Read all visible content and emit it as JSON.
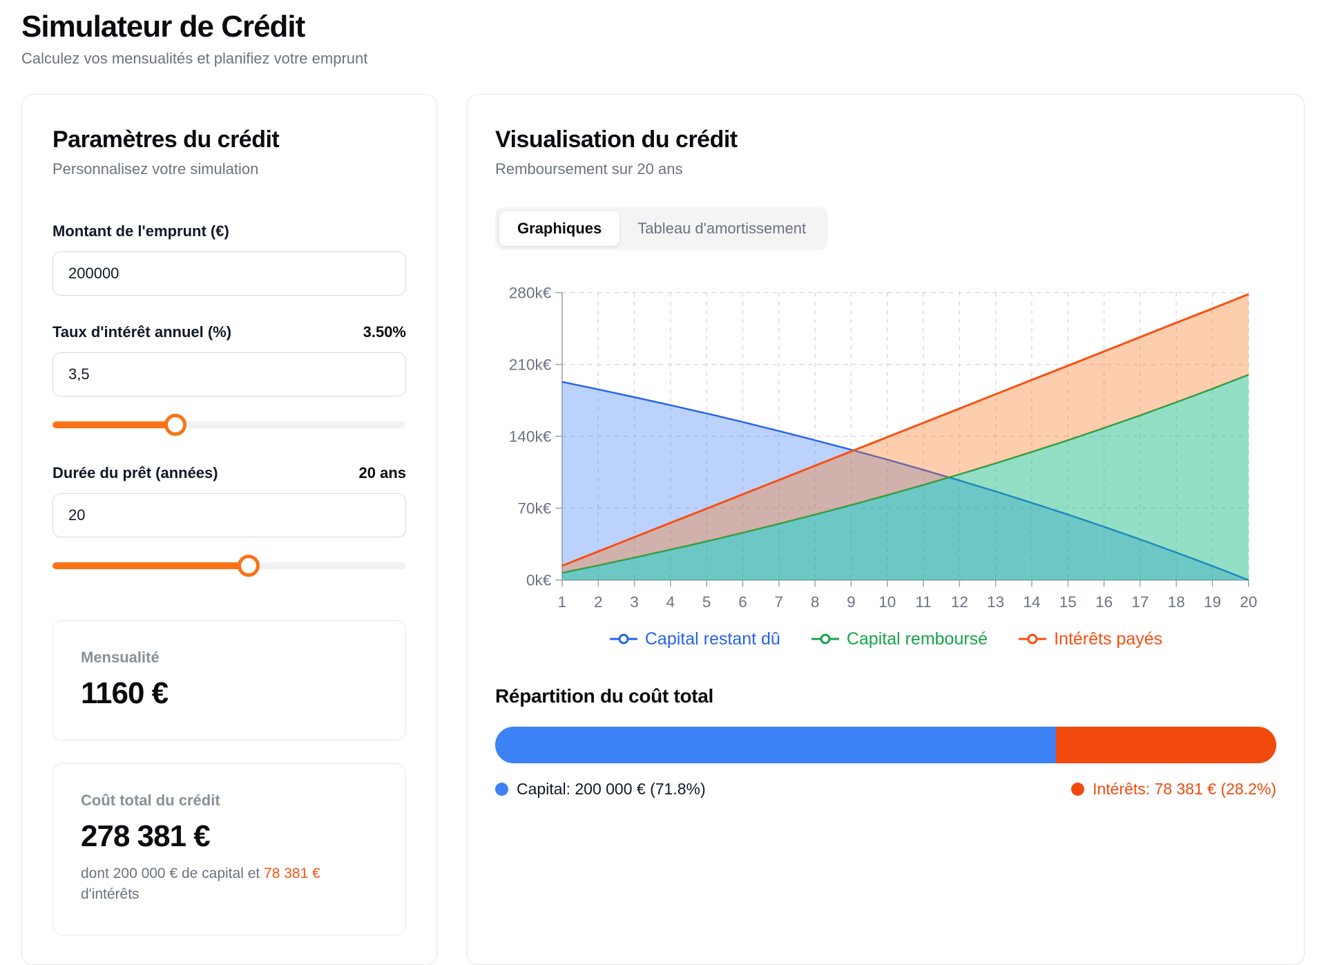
{
  "page": {
    "title": "Simulateur de Crédit",
    "subtitle": "Calculez vos mensualités et planifiez votre emprunt"
  },
  "params_card": {
    "title": "Paramètres du crédit",
    "subtitle": "Personnalisez votre simulation",
    "amount": {
      "label": "Montant de l'emprunt (€)",
      "value": "200000"
    },
    "rate": {
      "label": "Taux d'intérêt annuel (%)",
      "display": "3.50%",
      "value": "3,5",
      "slider_percent": 34.7
    },
    "duration": {
      "label": "Durée du prêt (années)",
      "display": "20 ans",
      "value": "20",
      "slider_percent": 55.4
    },
    "monthly": {
      "label": "Mensualité",
      "value": "1160 €"
    },
    "total": {
      "label": "Coût total du crédit",
      "value": "278 381 €",
      "note_prefix": "dont 200 000 € de capital et ",
      "note_highlight": "78 381 €",
      "note_suffix": "d'intérêts"
    },
    "accent_color": "#f97316"
  },
  "viz_card": {
    "title": "Visualisation du crédit",
    "subtitle": "Remboursement sur 20 ans",
    "tabs": [
      {
        "label": "Graphiques",
        "active": true
      },
      {
        "label": "Tableau d'amortissement",
        "active": false
      }
    ],
    "repartition": {
      "title": "Répartition du coût total",
      "capital_percent": 71.8,
      "interest_percent": 28.2,
      "capital_label": "Capital: 200 000 € (71.8%)",
      "interest_label": "Intérêts: 78 381 € (28.2%)",
      "capital_color": "#3d82f4",
      "interest_color": "#f24a0d"
    }
  },
  "chart_data": {
    "type": "area",
    "x": [
      1,
      2,
      3,
      4,
      5,
      6,
      7,
      8,
      9,
      10,
      11,
      12,
      13,
      14,
      15,
      16,
      17,
      18,
      19,
      20
    ],
    "x_unit": "ans",
    "ylim": [
      0,
      280
    ],
    "yticks": [
      0,
      70,
      140,
      210,
      280
    ],
    "ytick_suffix": "k€",
    "grid": true,
    "legend_position": "bottom",
    "series": [
      {
        "name": "Capital restant dû",
        "color": "#2563eb",
        "fill": "rgba(59,130,246,0.35)",
        "stacked": false,
        "values": [
          193.0,
          185.7,
          178.1,
          170.3,
          162.3,
          153.9,
          145.2,
          136.2,
          126.9,
          117.3,
          107.3,
          97.0,
          86.3,
          75.2,
          63.8,
          51.9,
          39.6,
          26.8,
          13.7,
          0
        ]
      },
      {
        "name": "Capital remboursé",
        "color": "#16a34a",
        "fill": "rgba(16,185,129,0.45)",
        "stacked": true,
        "values": [
          7.0,
          14.3,
          21.9,
          29.7,
          37.7,
          46.1,
          54.8,
          63.8,
          73.1,
          82.7,
          92.7,
          103.0,
          113.7,
          124.8,
          136.2,
          148.1,
          160.4,
          173.2,
          186.3,
          200.0
        ]
      },
      {
        "name": "Intérêts payés",
        "color": "#f84e10",
        "fill": "rgba(249,115,22,0.35)",
        "stacked": true,
        "values": [
          6.9,
          13.5,
          19.9,
          26.0,
          31.8,
          37.4,
          42.6,
          47.6,
          52.2,
          56.5,
          60.4,
          64.0,
          67.3,
          70.1,
          72.5,
          74.6,
          76.2,
          77.4,
          78.1,
          78.4
        ]
      }
    ]
  }
}
